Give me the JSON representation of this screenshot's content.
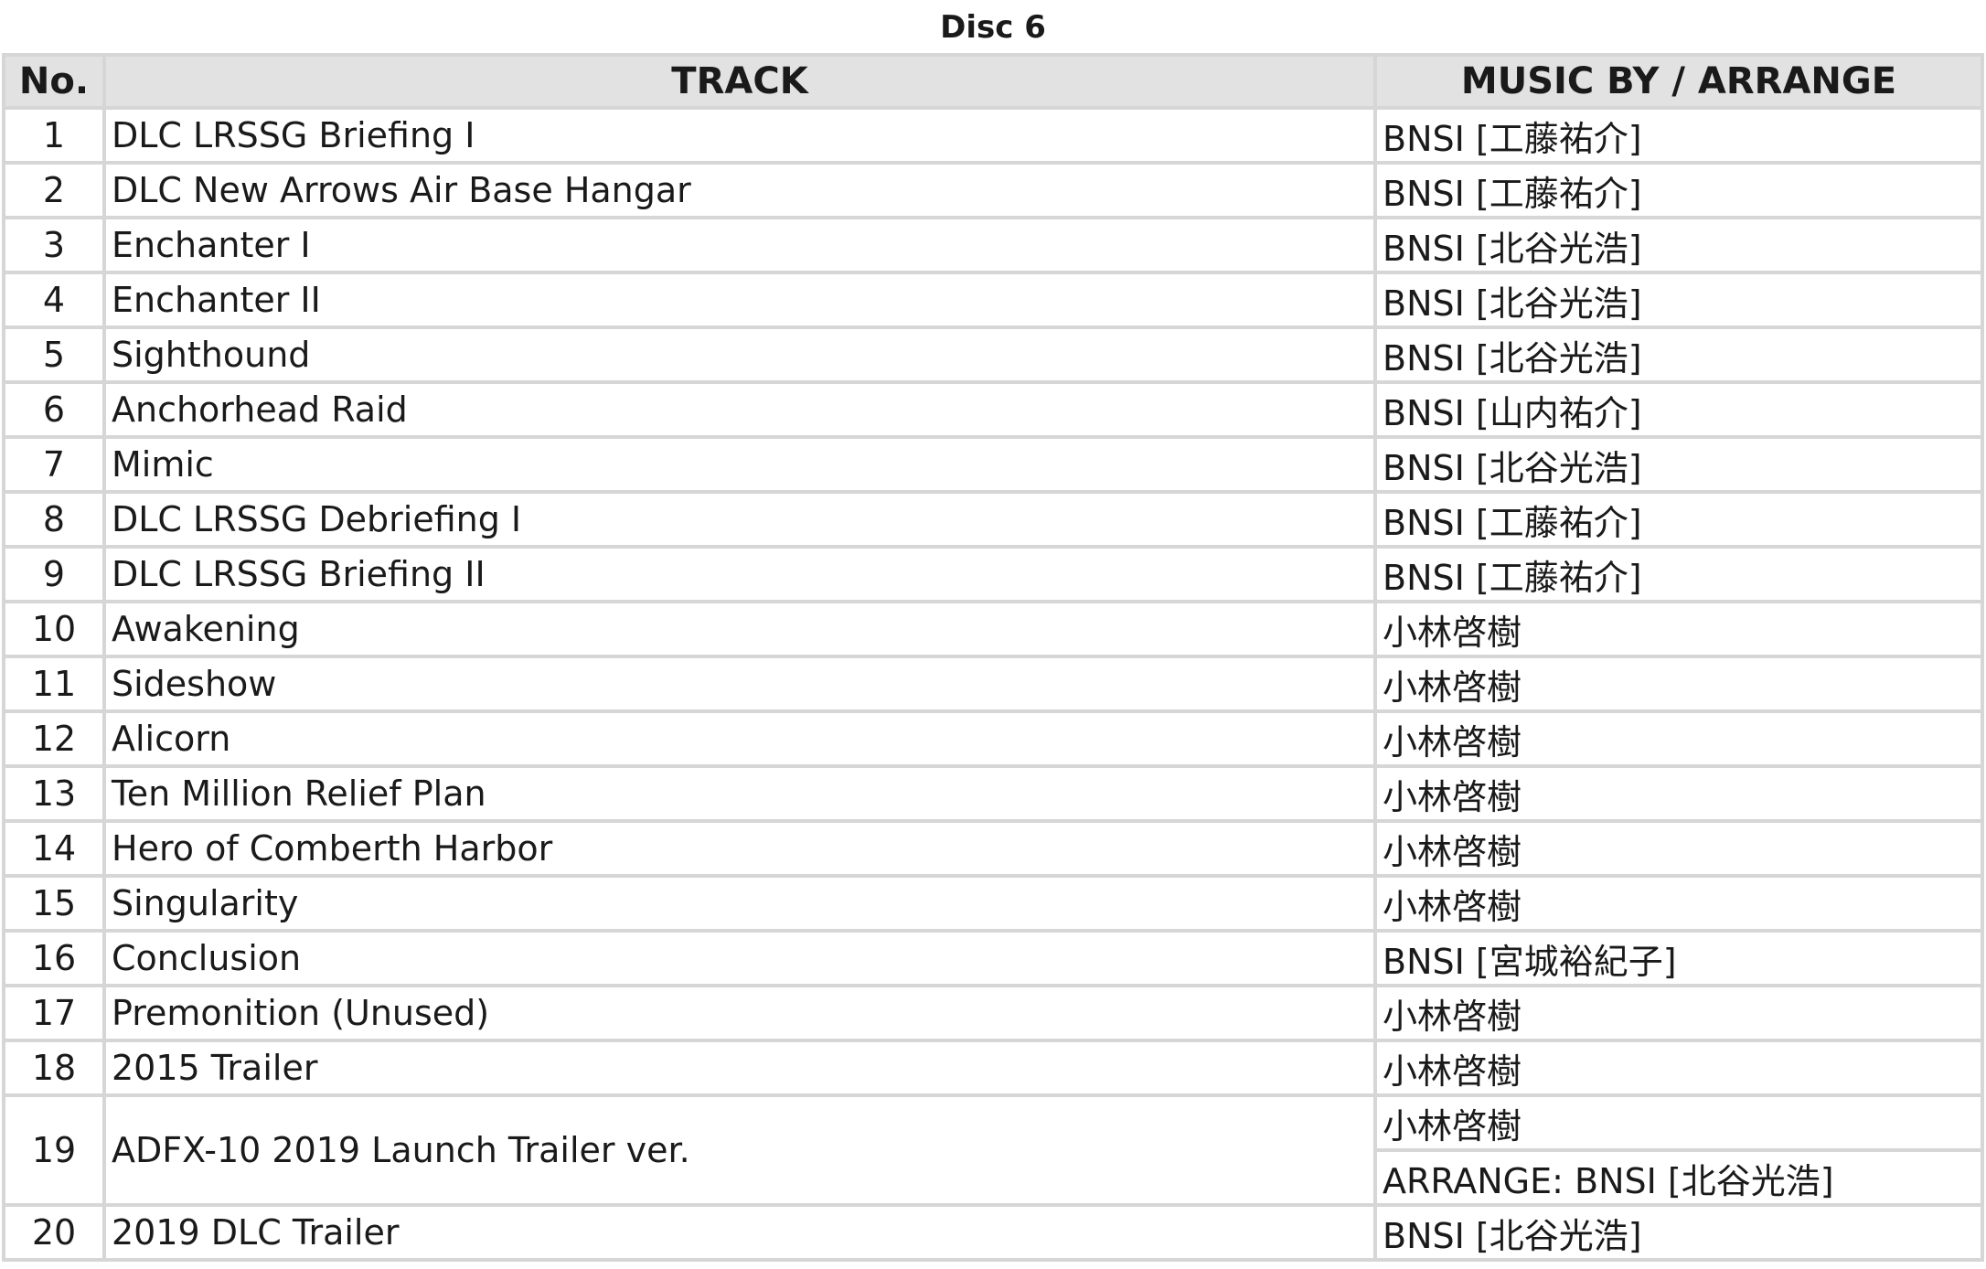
{
  "title": "Disc 6",
  "headers": {
    "no": "No.",
    "track": "TRACK",
    "music": "MUSIC BY / ARRANGE"
  },
  "rows": [
    {
      "no": "1",
      "track": "DLC LRSSG Briefing I",
      "music": [
        "BNSI [工藤祐介]"
      ]
    },
    {
      "no": "2",
      "track": "DLC New Arrows Air Base Hangar",
      "music": [
        "BNSI [工藤祐介]"
      ]
    },
    {
      "no": "3",
      "track": "Enchanter I",
      "music": [
        "BNSI [北谷光浩]"
      ]
    },
    {
      "no": "4",
      "track": "Enchanter II",
      "music": [
        "BNSI [北谷光浩]"
      ]
    },
    {
      "no": "5",
      "track": "Sighthound",
      "music": [
        "BNSI [北谷光浩]"
      ]
    },
    {
      "no": "6",
      "track": "Anchorhead Raid",
      "music": [
        "BNSI [山内祐介]"
      ]
    },
    {
      "no": "7",
      "track": "Mimic",
      "music": [
        "BNSI [北谷光浩]"
      ]
    },
    {
      "no": "8",
      "track": "DLC LRSSG Debriefing I",
      "music": [
        "BNSI [工藤祐介]"
      ]
    },
    {
      "no": "9",
      "track": "DLC LRSSG Briefing II",
      "music": [
        "BNSI [工藤祐介]"
      ]
    },
    {
      "no": "10",
      "track": "Awakening",
      "music": [
        "小林啓樹"
      ]
    },
    {
      "no": "11",
      "track": "Sideshow",
      "music": [
        "小林啓樹"
      ]
    },
    {
      "no": "12",
      "track": "Alicorn",
      "music": [
        "小林啓樹"
      ]
    },
    {
      "no": "13",
      "track": "Ten Million Relief Plan",
      "music": [
        "小林啓樹"
      ]
    },
    {
      "no": "14",
      "track": "Hero of Comberth Harbor",
      "music": [
        "小林啓樹"
      ]
    },
    {
      "no": "15",
      "track": "Singularity",
      "music": [
        "小林啓樹"
      ]
    },
    {
      "no": "16",
      "track": "Conclusion",
      "music": [
        "BNSI [宮城裕紀子]"
      ]
    },
    {
      "no": "17",
      "track": "Premonition (Unused)",
      "music": [
        "小林啓樹"
      ]
    },
    {
      "no": "18",
      "track": "2015 Trailer",
      "music": [
        "小林啓樹"
      ]
    },
    {
      "no": "19",
      "track": "ADFX-10 2019 Launch Trailer ver.",
      "music": [
        "小林啓樹",
        "ARRANGE: BNSI [北谷光浩]"
      ]
    },
    {
      "no": "20",
      "track": "2019 DLC Trailer",
      "music": [
        "BNSI [北谷光浩]"
      ]
    }
  ]
}
